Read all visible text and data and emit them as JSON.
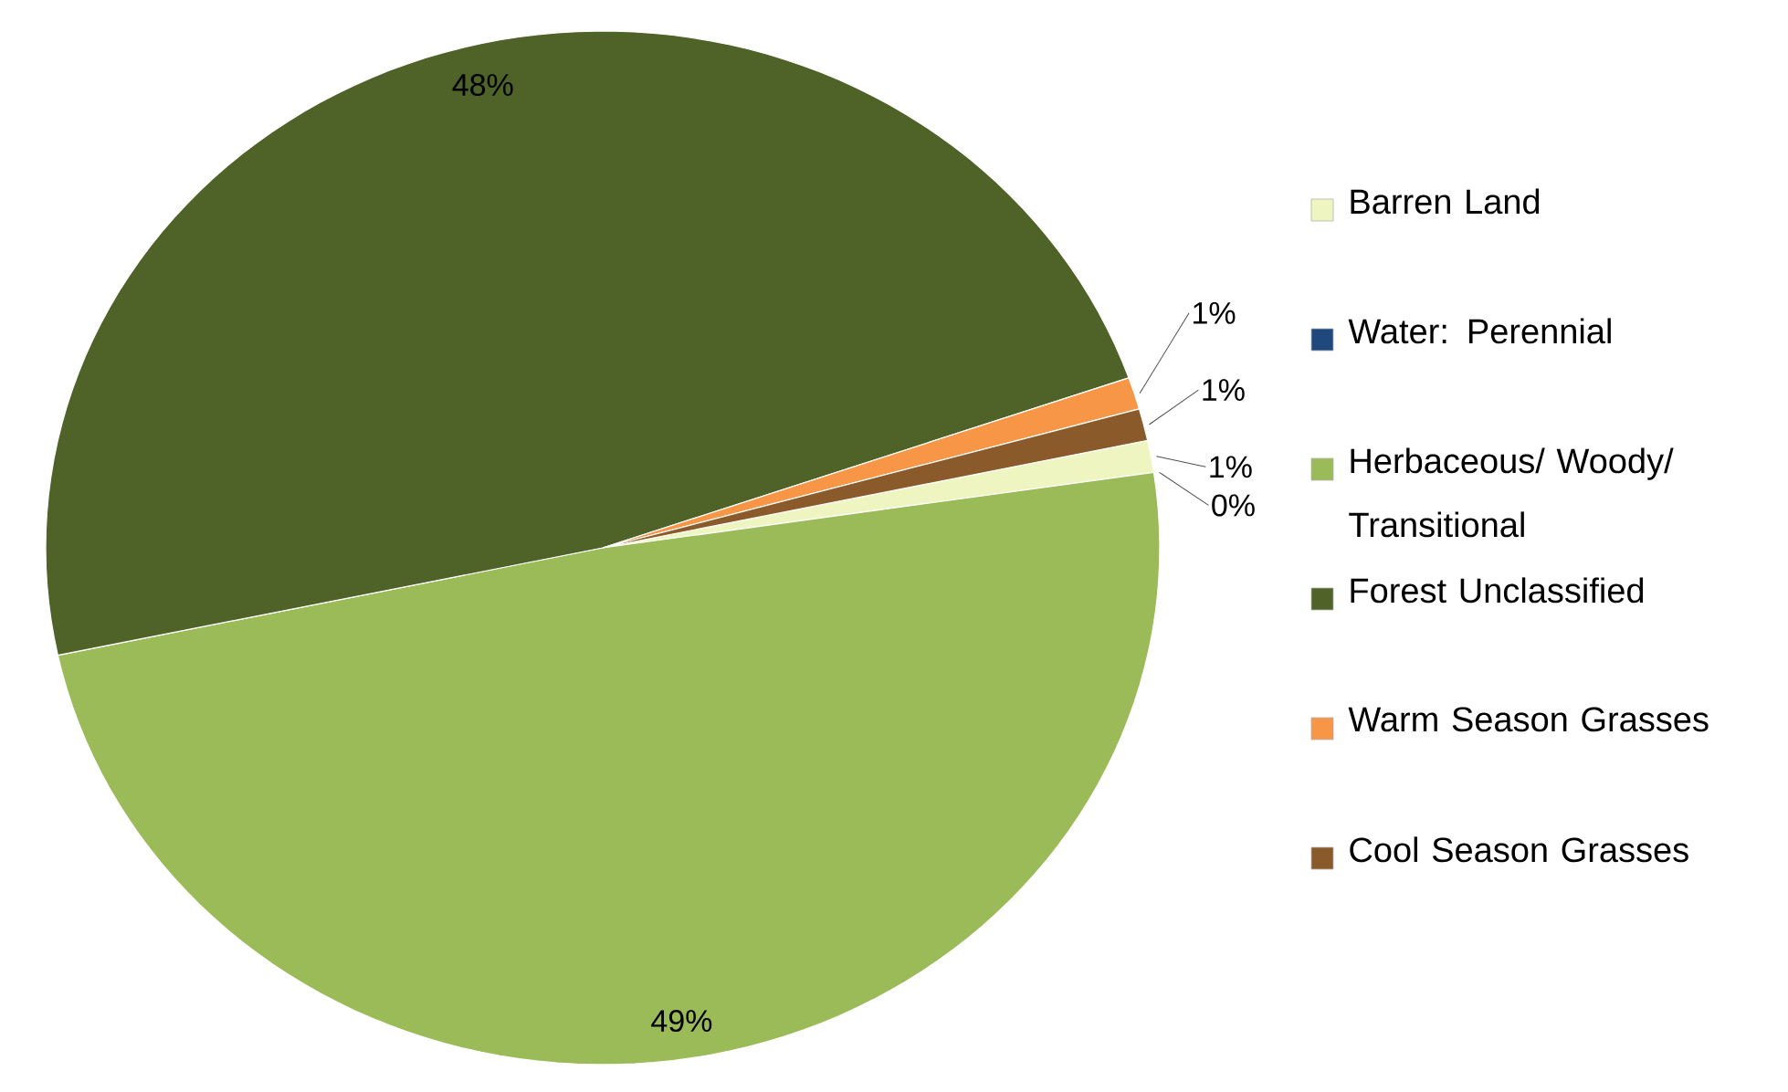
{
  "chart_data": {
    "type": "pie",
    "categories": [
      "Barren Land",
      "Water: Perennial",
      "Herbaceous/ Woody/ Transitional",
      "Forest Unclassified",
      "Warm Season Grasses",
      "Cool Season Grasses"
    ],
    "values": [
      1,
      0,
      49,
      48,
      1,
      1
    ],
    "colors": [
      "#eef5c0",
      "#1f497d",
      "#9bbb59",
      "#4f6228",
      "#f79646",
      "#8b5a2b"
    ],
    "value_labels": [
      "1%",
      "0%",
      "49%",
      "48%",
      "1%",
      "1%"
    ],
    "legend": "right"
  }
}
